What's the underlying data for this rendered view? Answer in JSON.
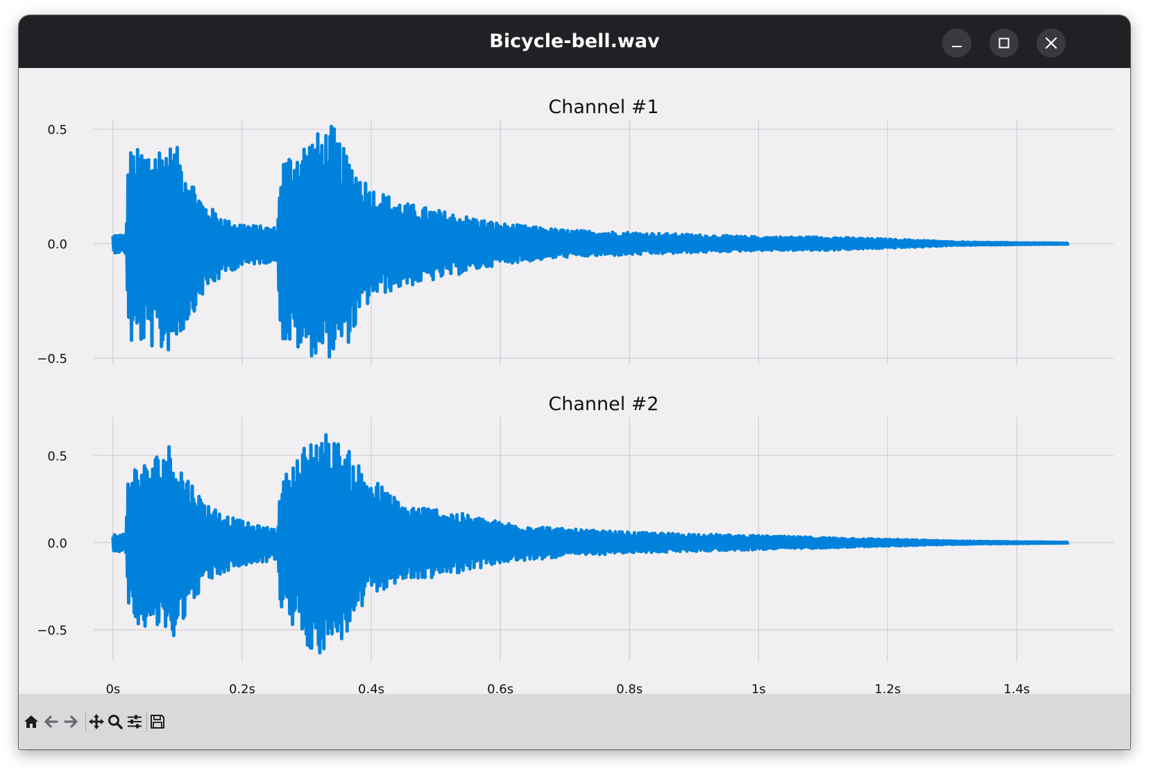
{
  "window": {
    "title": "Bicycle-bell.wav",
    "controls": [
      "minimize",
      "maximize",
      "close"
    ]
  },
  "toolbar": {
    "buttons": [
      {
        "name": "home",
        "icon": "home-icon"
      },
      {
        "name": "back",
        "icon": "arrow-left-icon"
      },
      {
        "name": "forward",
        "icon": "arrow-right-icon"
      },
      {
        "name": "pan",
        "icon": "move-icon"
      },
      {
        "name": "zoom",
        "icon": "magnifier-icon"
      },
      {
        "name": "configure-subplots",
        "icon": "sliders-icon"
      },
      {
        "name": "save",
        "icon": "floppy-disk-icon"
      }
    ]
  },
  "colors": {
    "waveform": "#0082dc",
    "grid": "#cfcdd2",
    "titlebar": "#222024",
    "plot_background": "#f1eff2",
    "toolbar_background": "#dad8db"
  },
  "chart_data": [
    {
      "type": "line",
      "title": "Channel #1",
      "xlabel": "",
      "ylabel": "",
      "x_ticks": [
        "0s",
        "0.2s",
        "0.4s",
        "0.6s",
        "0.8s",
        "1s",
        "1.2s",
        "1.4s"
      ],
      "x_tick_values": [
        0,
        0.2,
        0.4,
        0.6,
        0.8,
        1.0,
        1.2,
        1.4
      ],
      "y_ticks": [
        "0.5",
        "0.0",
        "−0.5"
      ],
      "y_tick_values": [
        0.5,
        0.0,
        -0.5
      ],
      "xlim": [
        -0.03,
        1.55
      ],
      "ylim": [
        -0.53,
        0.54
      ],
      "grid": true,
      "series": [
        {
          "x": [
            0.0,
            0.02,
            0.024,
            0.05,
            0.08,
            0.1,
            0.14,
            0.18,
            0.22,
            0.255,
            0.26,
            0.265,
            0.3,
            0.34,
            0.36,
            0.4,
            0.45,
            0.5,
            0.6,
            0.7,
            0.8,
            0.9,
            1.0,
            1.1,
            1.2,
            1.25,
            1.3,
            1.4,
            1.48
          ],
          "envelope_upper": [
            0.04,
            0.04,
            0.41,
            0.42,
            0.44,
            0.42,
            0.18,
            0.1,
            0.08,
            0.07,
            0.38,
            0.38,
            0.46,
            0.52,
            0.4,
            0.25,
            0.18,
            0.15,
            0.09,
            0.06,
            0.05,
            0.04,
            0.03,
            0.03,
            0.02,
            0.015,
            0.008,
            0.004,
            0.002
          ],
          "envelope_lower": [
            -0.04,
            -0.04,
            -0.45,
            -0.44,
            -0.49,
            -0.43,
            -0.22,
            -0.12,
            -0.09,
            -0.08,
            -0.42,
            -0.44,
            -0.49,
            -0.5,
            -0.46,
            -0.24,
            -0.19,
            -0.16,
            -0.09,
            -0.06,
            -0.05,
            -0.04,
            -0.03,
            -0.03,
            -0.02,
            -0.015,
            -0.008,
            -0.004,
            -0.002
          ]
        }
      ]
    },
    {
      "type": "line",
      "title": "Channel #2",
      "xlabel": "",
      "ylabel": "",
      "x_ticks": [
        "0s",
        "0.2s",
        "0.4s",
        "0.6s",
        "0.8s",
        "1s",
        "1.2s",
        "1.4s"
      ],
      "x_tick_values": [
        0,
        0.2,
        0.4,
        0.6,
        0.8,
        1.0,
        1.2,
        1.4
      ],
      "y_ticks": [
        "0.5",
        "0.0",
        "−0.5"
      ],
      "y_tick_values": [
        0.5,
        0.0,
        -0.5
      ],
      "xlim": [
        -0.03,
        1.55
      ],
      "ylim": [
        -0.68,
        0.72
      ],
      "grid": true,
      "series": [
        {
          "x": [
            0.0,
            0.02,
            0.024,
            0.05,
            0.09,
            0.1,
            0.14,
            0.18,
            0.22,
            0.255,
            0.26,
            0.265,
            0.3,
            0.32,
            0.36,
            0.4,
            0.45,
            0.5,
            0.6,
            0.7,
            0.8,
            0.9,
            1.0,
            1.1,
            1.2,
            1.25,
            1.3,
            1.4,
            1.48
          ],
          "envelope_upper": [
            0.05,
            0.05,
            0.45,
            0.46,
            0.58,
            0.48,
            0.24,
            0.15,
            0.1,
            0.08,
            0.35,
            0.38,
            0.58,
            0.66,
            0.55,
            0.38,
            0.22,
            0.2,
            0.12,
            0.08,
            0.06,
            0.05,
            0.04,
            0.03,
            0.02,
            0.015,
            0.01,
            0.005,
            0.002
          ],
          "envelope_lower": [
            -0.05,
            -0.05,
            -0.45,
            -0.48,
            -0.56,
            -0.5,
            -0.24,
            -0.16,
            -0.12,
            -0.1,
            -0.42,
            -0.42,
            -0.6,
            -0.64,
            -0.55,
            -0.3,
            -0.22,
            -0.2,
            -0.12,
            -0.08,
            -0.06,
            -0.05,
            -0.04,
            -0.03,
            -0.02,
            -0.015,
            -0.01,
            -0.005,
            -0.002
          ]
        }
      ]
    }
  ]
}
